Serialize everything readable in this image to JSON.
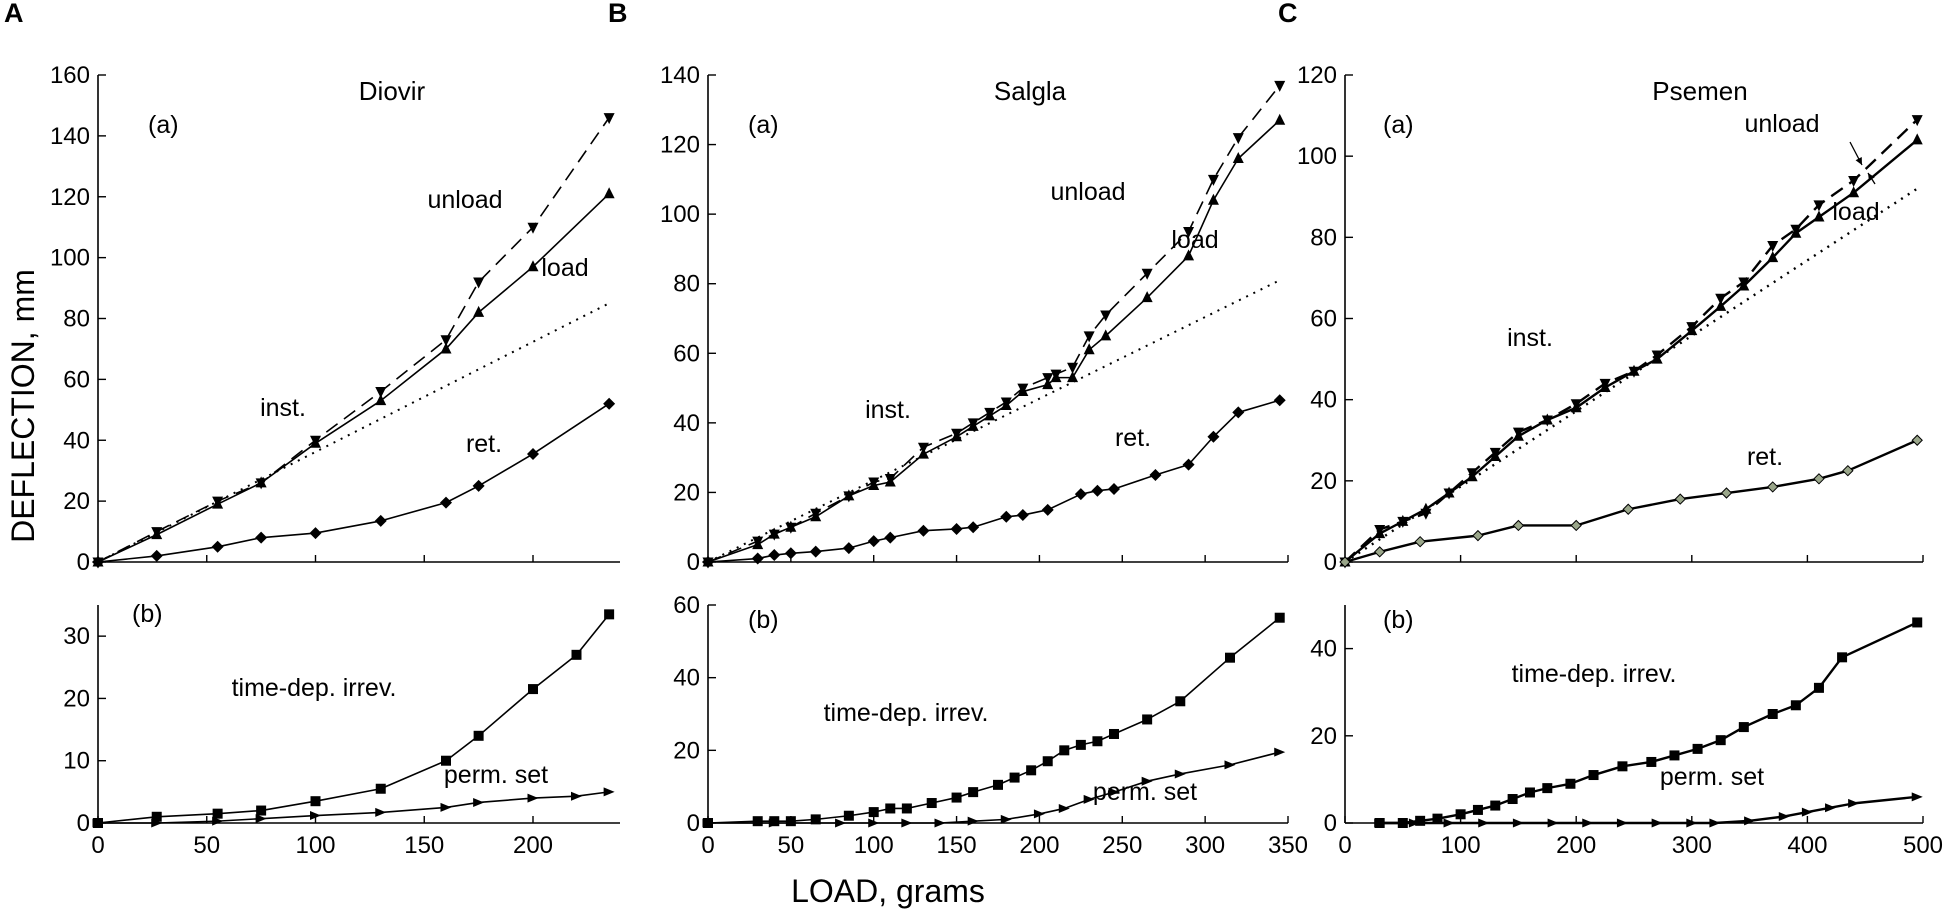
{
  "figure": {
    "y_axis_label": "DEFLECTION, mm",
    "x_axis_label": "LOAD, grams"
  },
  "chart_data": [
    {
      "panel": "A",
      "subplot": "(a)",
      "title": "Diovir",
      "type": "line",
      "xlim": [
        0,
        240
      ],
      "ylim": [
        0,
        160
      ],
      "yticks": [
        0,
        20,
        40,
        60,
        80,
        100,
        120,
        140,
        160
      ],
      "series": [
        {
          "name": "load",
          "style": "solid",
          "marker": "triangle-up",
          "x": [
            0,
            27,
            55,
            75,
            100,
            130,
            160,
            175,
            200,
            235
          ],
          "y": [
            0,
            9,
            19,
            26,
            39,
            53,
            70,
            82,
            97,
            121
          ]
        },
        {
          "name": "unload",
          "style": "dashed",
          "marker": "triangle-down",
          "x": [
            0,
            27,
            55,
            75,
            100,
            130,
            160,
            175,
            200,
            235
          ],
          "y": [
            0,
            10,
            20,
            26,
            40,
            56,
            73,
            92,
            110,
            146
          ]
        },
        {
          "name": "inst.",
          "style": "dotted",
          "marker": "none",
          "x": [
            0,
            235
          ],
          "y": [
            0,
            85
          ]
        },
        {
          "name": "ret.",
          "style": "solid",
          "marker": "diamond",
          "x": [
            0,
            27,
            55,
            75,
            100,
            130,
            160,
            175,
            200,
            235
          ],
          "y": [
            0,
            2,
            5,
            8,
            9.5,
            13.5,
            19.5,
            25,
            35.5,
            52
          ]
        }
      ],
      "annotations": [
        "unload",
        "load",
        "inst.",
        "ret."
      ]
    },
    {
      "panel": "A",
      "subplot": "(b)",
      "type": "line",
      "xlim": [
        0,
        240
      ],
      "ylim": [
        0,
        35
      ],
      "xticks": [
        0,
        50,
        100,
        150,
        200
      ],
      "yticks": [
        0,
        10,
        20,
        30
      ],
      "series": [
        {
          "name": "time-dep. irrev.",
          "style": "solid",
          "marker": "square",
          "x": [
            0,
            27,
            55,
            75,
            100,
            130,
            160,
            175,
            200,
            220,
            235
          ],
          "y": [
            0,
            1,
            1.5,
            2,
            3.5,
            5.5,
            10,
            14,
            21.5,
            27,
            33.5
          ]
        },
        {
          "name": "perm. set",
          "style": "solid",
          "marker": "triangle-right",
          "x": [
            0,
            27,
            55,
            75,
            100,
            130,
            160,
            175,
            200,
            220,
            235
          ],
          "y": [
            0,
            0,
            0.3,
            0.7,
            1.2,
            1.7,
            2.5,
            3.3,
            4,
            4.3,
            5
          ]
        }
      ],
      "annotations": [
        "time-dep. irrev.",
        "perm. set"
      ]
    },
    {
      "panel": "B",
      "subplot": "(a)",
      "title": "Salgla",
      "type": "line",
      "xlim": [
        0,
        350
      ],
      "ylim": [
        0,
        140
      ],
      "yticks": [
        0,
        20,
        40,
        60,
        80,
        100,
        120,
        140
      ],
      "series": [
        {
          "name": "load",
          "style": "solid",
          "marker": "triangle-up",
          "x": [
            0,
            30,
            40,
            50,
            65,
            85,
            100,
            110,
            130,
            150,
            160,
            170,
            180,
            190,
            205,
            210,
            220,
            230,
            240,
            265,
            290,
            305,
            320,
            345
          ],
          "y": [
            0,
            5,
            8,
            10,
            13,
            19,
            22,
            23,
            31,
            36,
            39,
            42,
            45,
            49,
            51,
            53,
            53,
            61,
            65,
            76,
            88,
            104,
            116,
            127
          ]
        },
        {
          "name": "unload",
          "style": "dashed",
          "marker": "triangle-down",
          "x": [
            0,
            30,
            40,
            50,
            65,
            85,
            100,
            110,
            130,
            150,
            160,
            170,
            180,
            190,
            205,
            210,
            220,
            230,
            240,
            265,
            290,
            305,
            320,
            345
          ],
          "y": [
            0,
            6,
            8,
            10,
            14,
            19,
            23,
            24,
            33,
            37,
            40,
            43,
            46,
            50,
            53,
            54,
            56,
            65,
            71,
            83,
            95,
            110,
            122,
            137
          ]
        },
        {
          "name": "inst.",
          "style": "dotted",
          "marker": "none",
          "x": [
            0,
            345
          ],
          "y": [
            0,
            81
          ]
        },
        {
          "name": "ret.",
          "style": "solid",
          "marker": "diamond",
          "x": [
            0,
            30,
            40,
            50,
            65,
            85,
            100,
            110,
            130,
            150,
            160,
            180,
            190,
            205,
            225,
            235,
            245,
            270,
            290,
            305,
            320,
            345
          ],
          "y": [
            0,
            1,
            2,
            2.5,
            3,
            4,
            6,
            7,
            9,
            9.5,
            10,
            13,
            13.5,
            15,
            19.5,
            20.5,
            21,
            25,
            28,
            36,
            43,
            46.5
          ]
        }
      ],
      "annotations": [
        "unload",
        "load",
        "inst.",
        "ret."
      ]
    },
    {
      "panel": "B",
      "subplot": "(b)",
      "type": "line",
      "xlim": [
        0,
        350
      ],
      "ylim": [
        0,
        60
      ],
      "xticks": [
        0,
        50,
        100,
        150,
        200,
        250,
        300,
        350
      ],
      "yticks": [
        0,
        20,
        40,
        60
      ],
      "series": [
        {
          "name": "time-dep. irrev.",
          "style": "solid",
          "marker": "square",
          "x": [
            0,
            30,
            40,
            50,
            65,
            85,
            100,
            110,
            120,
            135,
            150,
            160,
            175,
            185,
            195,
            205,
            215,
            225,
            235,
            245,
            265,
            285,
            315,
            345
          ],
          "y": [
            0,
            0.5,
            0.5,
            0.5,
            1,
            2,
            3,
            4,
            4,
            5.5,
            7,
            8.5,
            10.5,
            12.5,
            14.5,
            17,
            20,
            21.5,
            22.5,
            24.5,
            28.5,
            33.5,
            45.5,
            56.5
          ]
        },
        {
          "name": "perm. set",
          "style": "solid",
          "marker": "triangle-right",
          "x": [
            0,
            40,
            80,
            100,
            120,
            140,
            160,
            180,
            200,
            215,
            230,
            245,
            265,
            285,
            315,
            345
          ],
          "y": [
            0,
            0,
            0,
            0,
            0,
            0,
            0.5,
            1,
            2.5,
            4,
            6.5,
            8.5,
            11.5,
            13.5,
            16,
            19.5
          ]
        }
      ],
      "annotations": [
        "time-dep. irrev.",
        "perm. set"
      ]
    },
    {
      "panel": "C",
      "subplot": "(a)",
      "title": "Psemen",
      "type": "line",
      "xlim": [
        0,
        500
      ],
      "ylim": [
        0,
        120
      ],
      "yticks": [
        0,
        20,
        40,
        60,
        80,
        100,
        120
      ],
      "series": [
        {
          "name": "load",
          "style": "solid",
          "marker": "triangle-up",
          "x": [
            0,
            30,
            50,
            70,
            90,
            110,
            130,
            150,
            175,
            200,
            225,
            250,
            270,
            300,
            325,
            345,
            370,
            390,
            410,
            440,
            495
          ],
          "y": [
            0,
            7,
            10,
            13,
            17,
            21,
            26,
            31,
            35,
            38,
            43,
            47,
            50,
            57,
            63,
            68,
            75,
            81,
            85,
            91,
            104
          ]
        },
        {
          "name": "unload",
          "style": "dashed",
          "marker": "triangle-down",
          "x": [
            0,
            30,
            50,
            70,
            90,
            110,
            130,
            150,
            175,
            200,
            225,
            250,
            270,
            300,
            325,
            345,
            370,
            390,
            410,
            440,
            495
          ],
          "y": [
            0,
            8,
            10,
            12,
            17,
            22,
            27,
            32,
            35,
            39,
            44,
            47,
            51,
            58,
            65,
            69,
            78,
            82,
            88,
            94,
            109
          ]
        },
        {
          "name": "inst.",
          "style": "dotted",
          "marker": "none",
          "x": [
            0,
            495
          ],
          "y": [
            0,
            92
          ]
        },
        {
          "name": "ret.",
          "style": "solid",
          "marker": "diamond-small",
          "x": [
            0,
            30,
            65,
            115,
            150,
            200,
            245,
            290,
            330,
            370,
            410,
            435,
            495
          ],
          "y": [
            0,
            2.5,
            5,
            6.5,
            9,
            9,
            13,
            15.5,
            17,
            18.5,
            20.5,
            22.5,
            30
          ]
        }
      ],
      "annotations": [
        "unload",
        "load",
        "inst.",
        "ret."
      ]
    },
    {
      "panel": "C",
      "subplot": "(b)",
      "type": "line",
      "xlim": [
        0,
        500
      ],
      "ylim": [
        0,
        50
      ],
      "xticks": [
        0,
        100,
        200,
        300,
        400,
        500
      ],
      "yticks": [
        0,
        20,
        40
      ],
      "series": [
        {
          "name": "time-dep. irrev.",
          "style": "solid",
          "marker": "square",
          "x": [
            30,
            50,
            65,
            80,
            100,
            115,
            130,
            145,
            160,
            175,
            195,
            215,
            240,
            265,
            285,
            305,
            325,
            345,
            370,
            390,
            410,
            430,
            495
          ],
          "y": [
            0,
            0,
            0.5,
            1,
            2,
            3,
            4,
            5.5,
            7,
            8,
            9,
            11,
            13,
            14,
            15.5,
            17,
            19,
            22,
            25,
            27,
            31,
            38,
            46
          ]
        },
        {
          "name": "perm. set",
          "style": "solid",
          "marker": "triangle-right",
          "x": [
            30,
            60,
            90,
            120,
            150,
            180,
            210,
            240,
            270,
            300,
            320,
            350,
            380,
            400,
            420,
            440,
            495
          ],
          "y": [
            0,
            0,
            0,
            0,
            0,
            0,
            0,
            0,
            0,
            0,
            0,
            0.5,
            1.5,
            2.5,
            3.5,
            4.5,
            6
          ]
        }
      ],
      "annotations": [
        "time-dep. irrev.",
        "perm. set"
      ]
    }
  ]
}
